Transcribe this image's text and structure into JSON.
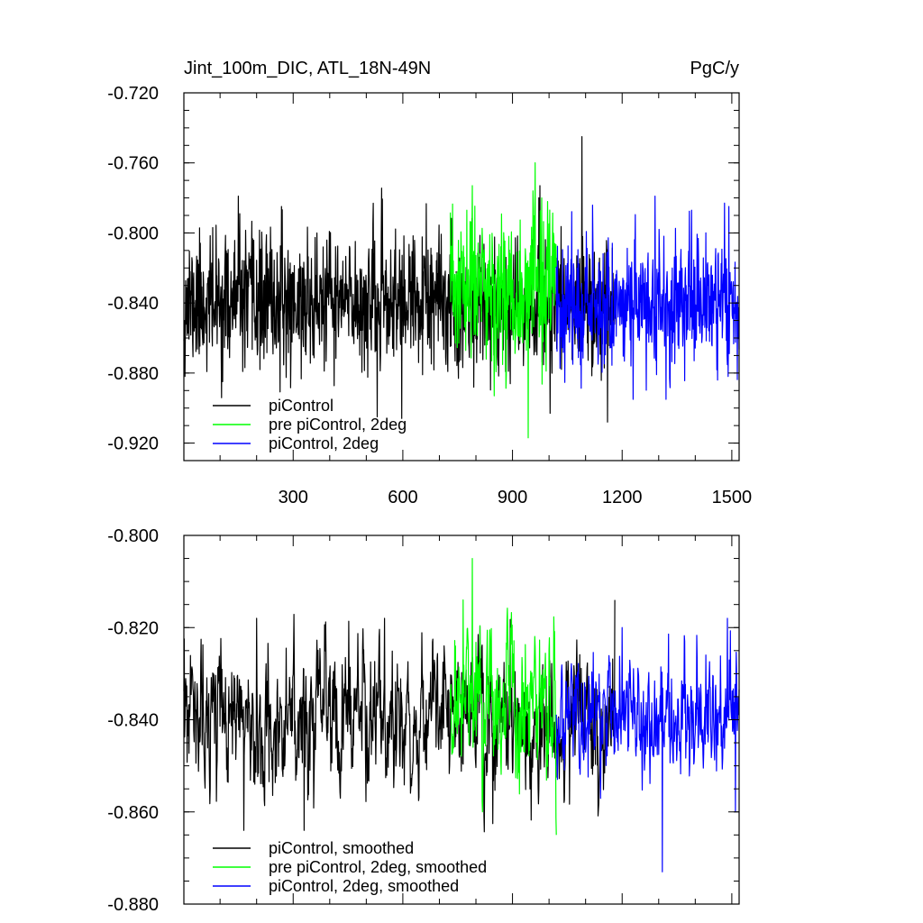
{
  "chart_data": [
    {
      "type": "line",
      "title": "Jint_100m_DIC, ATL_18N-49N",
      "units": "PgC/y",
      "xlim": [
        1,
        1520
      ],
      "ylim": [
        -0.93,
        -0.72
      ],
      "xticks": [
        300,
        600,
        900,
        1200,
        1500
      ],
      "yticks": [
        -0.72,
        -0.76,
        -0.8,
        -0.84,
        -0.88,
        -0.92
      ],
      "xtick_labels": [
        "300",
        "600",
        "900",
        "1200",
        "1500"
      ],
      "ytick_labels": [
        "-0.720",
        "-0.760",
        "-0.800",
        "-0.840",
        "-0.880",
        "-0.920"
      ],
      "series": [
        {
          "name": "piControl",
          "color": "#000000",
          "x_range": [
            1,
            1180
          ],
          "mean": -0.84,
          "sigma": 0.019,
          "seed": 11,
          "features": [
            {
              "x": 1090,
              "y": -0.745
            },
            {
              "x": 1003,
              "y": -0.903
            },
            {
              "x": 1160,
              "y": -0.908
            },
            {
              "x": 150,
              "y": -0.779
            },
            {
              "x": 975,
              "y": -0.773
            },
            {
              "x": 530,
              "y": -0.905
            }
          ]
        },
        {
          "name": "pre piControl, 2deg",
          "color": "#00ff00",
          "x_range": [
            730,
            1020
          ],
          "mean": -0.832,
          "sigma": 0.022,
          "seed": 23,
          "features": [
            {
              "x": 943,
              "y": -0.917
            },
            {
              "x": 790,
              "y": -0.773
            },
            {
              "x": 850,
              "y": -0.893
            },
            {
              "x": 980,
              "y": -0.78
            }
          ]
        },
        {
          "name": "piControl, 2deg",
          "color": "#0000ff",
          "x_range": [
            1020,
            1520
          ],
          "mean": -0.84,
          "sigma": 0.018,
          "seed": 37,
          "features": [
            {
              "x": 1290,
              "y": -0.779
            },
            {
              "x": 1390,
              "y": -0.787
            },
            {
              "x": 1230,
              "y": -0.895
            },
            {
              "x": 1480,
              "y": -0.783
            },
            {
              "x": 1320,
              "y": -0.895
            }
          ]
        }
      ],
      "legend": [
        "piControl",
        "pre piControl, 2deg",
        "piControl, 2deg"
      ]
    },
    {
      "type": "line",
      "title": "",
      "xlim": [
        1,
        1520
      ],
      "ylim": [
        -0.88,
        -0.8
      ],
      "xticks": [
        300,
        600,
        900,
        1200,
        1500
      ],
      "yticks": [
        -0.8,
        -0.82,
        -0.84,
        -0.86,
        -0.88
      ],
      "ytick_labels": [
        "-0.800",
        "-0.820",
        "-0.840",
        "-0.860",
        "-0.880"
      ],
      "series": [
        {
          "name": "piControl, smoothed",
          "color": "#000000",
          "x_range": [
            1,
            1180
          ],
          "mean": -0.84,
          "sigma": 0.0085,
          "seed": 53,
          "features": [
            {
              "x": 200,
              "y": -0.818
            },
            {
              "x": 165,
              "y": -0.864
            },
            {
              "x": 550,
              "y": -0.818
            },
            {
              "x": 1180,
              "y": -0.814
            },
            {
              "x": 330,
              "y": -0.864
            }
          ]
        },
        {
          "name": "pre piControl, 2deg, smoothed",
          "color": "#00ff00",
          "x_range": [
            730,
            1020
          ],
          "mean": -0.836,
          "sigma": 0.0095,
          "seed": 71,
          "features": [
            {
              "x": 790,
              "y": -0.805
            },
            {
              "x": 1020,
              "y": -0.865
            },
            {
              "x": 765,
              "y": -0.814
            }
          ]
        },
        {
          "name": "piControl, 2deg, smoothed",
          "color": "#0000ff",
          "x_range": [
            1020,
            1520
          ],
          "mean": -0.84,
          "sigma": 0.0075,
          "seed": 97,
          "features": [
            {
              "x": 1310,
              "y": -0.873
            },
            {
              "x": 1488,
              "y": -0.818
            },
            {
              "x": 1200,
              "y": -0.82
            },
            {
              "x": 1510,
              "y": -0.86
            }
          ]
        }
      ],
      "legend": [
        "piControl, smoothed",
        "pre piControl, 2deg, smoothed",
        "piControl, 2deg, smoothed"
      ]
    }
  ]
}
